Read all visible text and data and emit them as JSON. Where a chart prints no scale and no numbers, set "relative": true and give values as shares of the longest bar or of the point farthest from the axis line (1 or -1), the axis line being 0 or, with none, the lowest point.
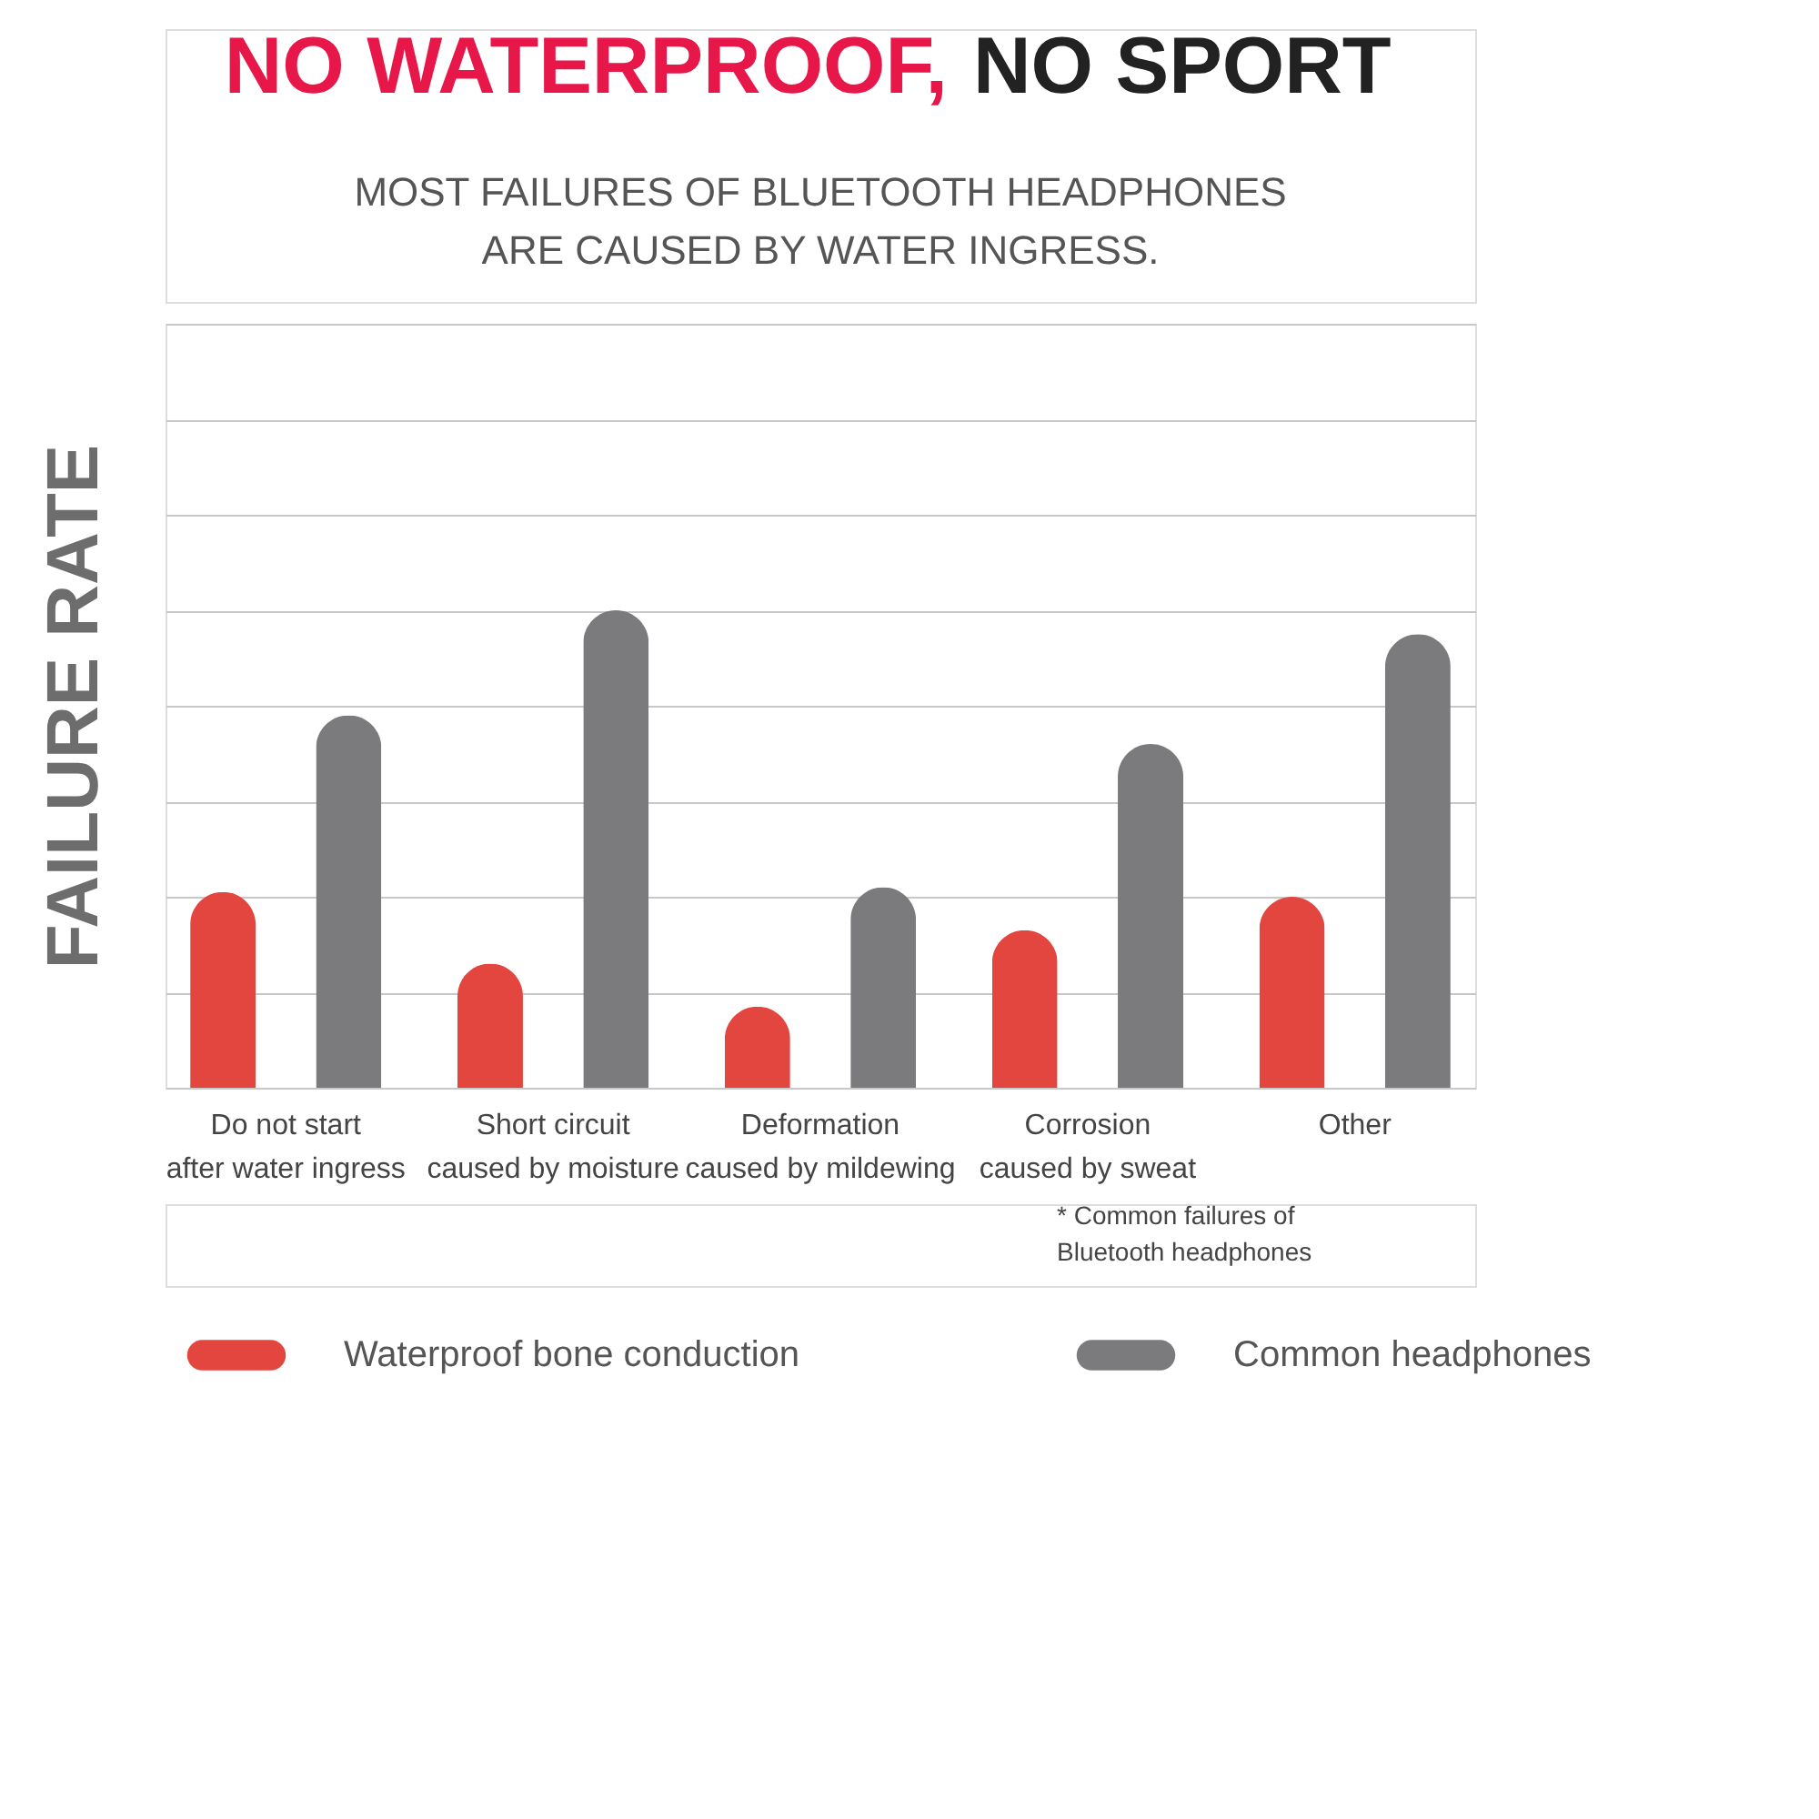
{
  "chart_data": {
    "type": "bar",
    "title": "NO WATERPROOF, NO SPORT",
    "subtitle": "MOST FAILURES OF BLUETOOTH HEADPHONES\nARE CAUSED BY WATER INGRESS.",
    "ylabel": "FAILURE RATE",
    "categories": [
      "Do not start\nafter water ingress",
      "Short circuit\ncaused by moisture",
      "Deformation\ncaused by mildewing",
      "Corrosion\ncaused by sweat",
      "Other"
    ],
    "relative": true,
    "grid": "y",
    "legend": "bottom",
    "series": [
      {
        "name": "Waterproof bone conduction",
        "color": "#e2463f",
        "values": [
          0.41,
          0.26,
          0.17,
          0.33,
          0.4
        ]
      },
      {
        "name": "Common headphones",
        "color": "#7b7b7d",
        "values": [
          0.78,
          1,
          0.42,
          0.72,
          0.95
        ]
      }
    ],
    "annotations": [
      "* Common failures of\nBluetooth headphones"
    ]
  }
}
